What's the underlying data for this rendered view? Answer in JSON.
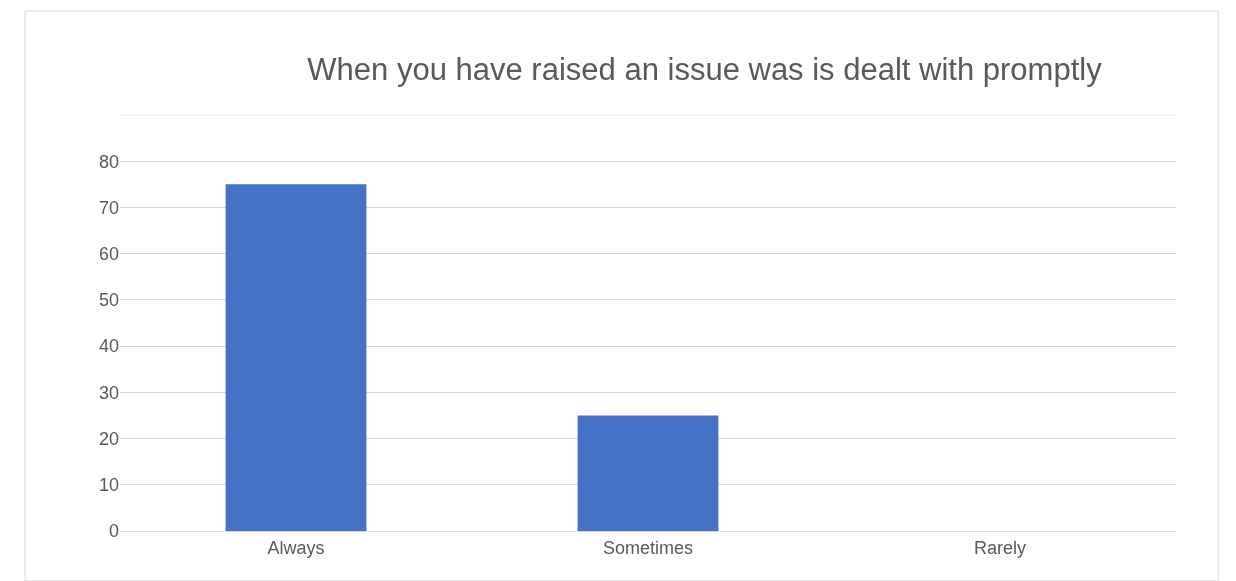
{
  "chart_data": {
    "type": "bar",
    "title": "When you have raised an issue was is dealt with promptly",
    "categories": [
      "Always",
      "Sometimes",
      "Rarely"
    ],
    "values": [
      75,
      25,
      0
    ],
    "color": "#4472c4",
    "ylim": [
      0,
      90
    ],
    "yticks": [
      0,
      10,
      20,
      30,
      40,
      50,
      60,
      70,
      80
    ],
    "grid": "y"
  }
}
